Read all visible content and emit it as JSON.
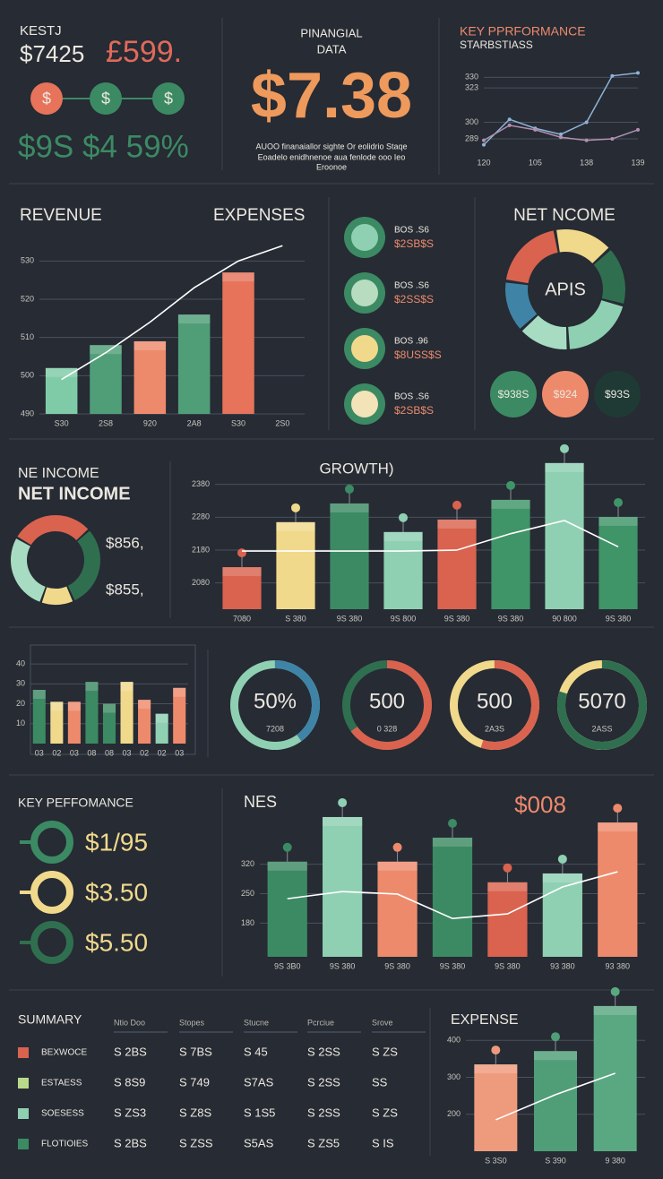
{
  "header": {
    "kpi_title": "KESTJ",
    "kpi_value": "$7425",
    "kpi_value2": "£599.",
    "coins": [
      "$",
      "$",
      "$"
    ],
    "kpi_stats": "$9S $4 59%",
    "fin_title": [
      "PINANGIAL",
      "DATA"
    ],
    "fin_value": "$7.38",
    "fin_note": [
      "AUOO finanaiallor sighte Or eolidrio Staqe",
      "Eoadelo enidhnenoe aua fenlode ooo Ieo",
      "Eroonoe"
    ]
  },
  "list": [
    [
      "BOS .S6",
      "$2SB$S"
    ],
    [
      "BOS .S6",
      "$2SS$S"
    ],
    [
      "BOS .96",
      "$8USS$S"
    ],
    [
      "BOS .S6",
      "$2SB$S"
    ]
  ],
  "net_circles": [
    "$938S",
    "$924",
    "$93S"
  ],
  "net_side": [
    "$856,",
    "$855,"
  ],
  "key_perf": {
    "title": "KEY PEFFOMANCE",
    "values": [
      "$1/95",
      "$3.50",
      "$5.50"
    ]
  },
  "chart_data": [
    {
      "type": "line",
      "title": "KEY PPRFORMANCE",
      "subtitle": "STARBSTIASS",
      "categories": [
        "120",
        null,
        "105",
        null,
        "138",
        null,
        "139"
      ],
      "series": [
        {
          "color": "#8fb4d9",
          "values": [
            285,
            302,
            296,
            292,
            300,
            331,
            333
          ]
        },
        {
          "color": "#b28fb0",
          "values": [
            288,
            298,
            295,
            290,
            288,
            289,
            295
          ]
        }
      ],
      "ylim": [
        280,
        335
      ],
      "yticks": [
        289,
        300,
        323,
        330
      ],
      "grid": true
    },
    {
      "type": "bar",
      "title": "REVENUE",
      "title2": "EXPENSES",
      "categories": [
        "S30",
        "2S8",
        "920",
        "2A8",
        "S30",
        "2S0"
      ],
      "values": [
        502,
        508,
        509,
        516,
        527,
        null
      ],
      "colors": [
        "#7fcba8",
        "#4f9e78",
        "#ee8a6c",
        "#4f9e78",
        "#e6735a",
        "#4f9e78"
      ],
      "line_values": [
        499,
        506,
        514,
        523,
        530,
        534
      ],
      "line_color": "#ffffff",
      "ylim": [
        490,
        535
      ],
      "yticks": [
        490,
        500,
        510,
        520,
        530
      ],
      "grid": true
    },
    {
      "type": "donut",
      "title": "NET NCOME",
      "center": "APIS",
      "values": [
        16,
        16,
        20,
        14,
        14,
        20
      ],
      "colors": [
        "#f1d98c",
        "#2f6f50",
        "#8fd0b2",
        "#a7dcc3",
        "#3f84a6",
        "#d9634f"
      ]
    },
    {
      "type": "donut",
      "title": "NET INCOME",
      "subtitle": "NE INCOME",
      "values": [
        30,
        30,
        12,
        28
      ],
      "colors": [
        "#d9634f",
        "#2f6f50",
        "#f1d98c",
        "#a7dcc3"
      ]
    },
    {
      "type": "bar",
      "title": "GROWTH)",
      "categories": [
        "7080",
        "S 380",
        "9S 380",
        "9S 800",
        "9S 380",
        "9S 380",
        "90 800",
        "9S 380"
      ],
      "values": [
        2128,
        2265,
        2322,
        2235,
        2273,
        2333,
        2445,
        2281
      ],
      "colors": [
        "#d9634f",
        "#f1d98c",
        "#3c8a63",
        "#8fd0b2",
        "#d9634f",
        "#3f9468",
        "#8fd0b2",
        "#3f9468"
      ],
      "line_values": [
        2177,
        2177,
        2177,
        2177,
        2180,
        2230,
        2270,
        2190
      ],
      "line_color": "#ffffff",
      "markers": true,
      "ylim": [
        2000,
        2450
      ],
      "yticks": [
        2080,
        2180,
        2280,
        2380
      ],
      "grid": true
    },
    {
      "type": "bar",
      "categories": [
        "03",
        "02",
        "03",
        "08",
        "08",
        "03",
        "02",
        "02",
        "03"
      ],
      "values": [
        27,
        21,
        21,
        31,
        20,
        31,
        22,
        15,
        28
      ],
      "colors": [
        "#3c8a63",
        "#f1d98c",
        "#ee8a6c",
        "#3c8a63",
        "#3c8a63",
        "#f1d98c",
        "#ee8a6c",
        "#8fd0b2",
        "#ee8a6c"
      ],
      "ylim": [
        0,
        45
      ],
      "yticks": [
        10,
        20,
        30,
        40
      ],
      "grid": true
    },
    {
      "type": "gauge",
      "values": [
        40,
        65,
        55,
        80
      ],
      "colors": [
        "#3f84a6",
        "#d9634f",
        "#d9634f",
        "#2f6f50"
      ],
      "track_colors": [
        "#8fd0b2",
        "#2f6f50",
        "#f1d98c",
        "#f1d98c"
      ],
      "center_texts": [
        "50%",
        "500",
        "500",
        "5070"
      ],
      "sub_texts": [
        "7208",
        "0 328",
        "2A3S",
        "2ASS"
      ]
    },
    {
      "type": "bar",
      "title": "NES",
      "callout": "$008",
      "categories": [
        "9S 3B0",
        "9S 380",
        "9S 380",
        "9S 380",
        "9S 380",
        "93 380",
        "93 380"
      ],
      "values": [
        326,
        432,
        326,
        383,
        277,
        298,
        419
      ],
      "colors": [
        "#3c8a63",
        "#8fd0b2",
        "#ee8a6c",
        "#3c8a63",
        "#d9634f",
        "#8fd0b2",
        "#ee8a6c"
      ],
      "line_values": [
        238,
        255,
        249,
        191,
        202,
        266,
        302
      ],
      "line_color": "#ffffff",
      "markers": true,
      "ylim": [
        100,
        500
      ],
      "yticks": [
        180,
        250,
        320
      ],
      "grid": true
    },
    {
      "type": "bar",
      "title": "EXPENSE",
      "categories": [
        "S 3S0",
        "S 390",
        "9 380"
      ],
      "values": [
        335,
        371,
        493
      ],
      "colors": [
        "#ee9a7c",
        "#4f9e78",
        "#5aa882"
      ],
      "line_values": [
        185,
        253,
        311
      ],
      "line_color": "#ffffff",
      "markers": true,
      "ylim": [
        100,
        500
      ],
      "yticks": [
        200,
        300,
        400
      ],
      "grid": true
    }
  ],
  "summary": {
    "title": "SUMMARY",
    "header": [
      "Ntio Doo",
      "Stopes",
      "Stucne",
      "Pcrciue",
      "Srove"
    ],
    "colors": [
      "#d9634f",
      "#b8d98c",
      "#8fd0b2",
      "#3c8a63"
    ],
    "rows": [
      [
        "BEXWOCE",
        "S 2BS",
        "S 7BS",
        "S 45",
        "S 2SS",
        "S ZS"
      ],
      [
        "ESTAESS",
        "S 8S9",
        "S 749",
        "S7AS",
        "S 2SS",
        "SS"
      ],
      [
        "SOESESS",
        "S ZS3",
        "S Z8S",
        "S 1S5",
        "S 2SS",
        "S ZS"
      ],
      [
        "FLOTIOIES",
        "S 2BS",
        "S ZSS",
        "S5AS",
        "S ZS5",
        "S IS"
      ]
    ]
  }
}
